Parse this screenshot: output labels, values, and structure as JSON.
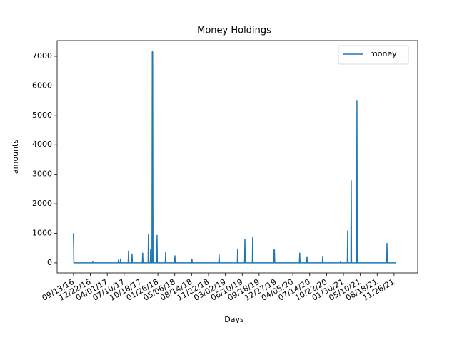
{
  "chart_data": {
    "type": "line",
    "title": "Money Holdings",
    "xlabel": "Days",
    "ylabel": "amounts",
    "x": [
      "2016-09-12",
      "2016-09-14",
      "2016-09-15",
      "2017-01-03",
      "2017-01-05",
      "2017-01-07",
      "2017-06-05",
      "2017-06-07",
      "2017-06-09",
      "2017-06-17",
      "2017-06-19",
      "2017-06-21",
      "2017-08-03",
      "2017-08-05",
      "2017-08-07",
      "2017-08-24",
      "2017-08-26",
      "2017-08-28",
      "2017-10-26",
      "2017-10-28",
      "2017-10-30",
      "2017-11-29",
      "2017-12-01",
      "2017-12-03",
      "2017-12-12",
      "2017-12-14",
      "2017-12-16",
      "2017-12-22",
      "2017-12-24",
      "2017-12-26",
      "2017-12-28",
      "2018-01-19",
      "2018-01-21",
      "2018-01-23",
      "2018-03-11",
      "2018-03-13",
      "2018-03-15",
      "2018-05-05",
      "2018-05-07",
      "2018-05-09",
      "2018-08-14",
      "2018-08-16",
      "2018-08-18",
      "2019-01-22",
      "2019-01-24",
      "2019-01-26",
      "2019-05-12",
      "2019-05-14",
      "2019-05-16",
      "2019-06-24",
      "2019-06-26",
      "2019-06-28",
      "2019-08-09",
      "2019-08-11",
      "2019-08-13",
      "2019-12-14",
      "2019-12-16",
      "2019-12-18",
      "2019-12-20",
      "2020-05-14",
      "2020-05-16",
      "2020-05-18",
      "2020-06-26",
      "2020-06-28",
      "2020-06-30",
      "2020-09-27",
      "2020-09-29",
      "2020-10-01",
      "2021-01-11",
      "2021-01-13",
      "2021-01-15",
      "2021-02-22",
      "2021-02-24",
      "2021-02-26",
      "2021-03-15",
      "2021-03-17",
      "2021-03-19",
      "2021-04-18",
      "2021-04-20",
      "2021-04-22",
      "2021-10-13",
      "2021-10-15",
      "2021-10-17",
      "2021-12-05"
    ],
    "series": [
      {
        "name": "money",
        "color": "#1f77b4",
        "values": [
          1000,
          550,
          0,
          0,
          30,
          0,
          0,
          100,
          0,
          0,
          130,
          0,
          0,
          400,
          0,
          0,
          300,
          0,
          0,
          330,
          0,
          0,
          970,
          0,
          0,
          450,
          0,
          0,
          7150,
          7150,
          0,
          0,
          930,
          0,
          0,
          350,
          0,
          0,
          240,
          0,
          0,
          130,
          0,
          0,
          270,
          0,
          0,
          470,
          0,
          0,
          800,
          0,
          0,
          870,
          0,
          0,
          450,
          420,
          0,
          0,
          330,
          0,
          0,
          210,
          0,
          0,
          220,
          0,
          0,
          30,
          0,
          0,
          1080,
          0,
          0,
          2780,
          0,
          0,
          5480,
          0,
          0,
          660,
          0,
          0
        ]
      }
    ],
    "xlim": [
      "2016-06-08",
      "2022-04-15"
    ],
    "xticks": [
      {
        "value": "2016-09-13",
        "label": "09/13/16"
      },
      {
        "value": "2016-12-22",
        "label": "12/22/16"
      },
      {
        "value": "2017-04-01",
        "label": "04/01/17"
      },
      {
        "value": "2017-07-10",
        "label": "07/10/17"
      },
      {
        "value": "2017-10-18",
        "label": "10/18/17"
      },
      {
        "value": "2018-01-26",
        "label": "01/26/18"
      },
      {
        "value": "2018-05-06",
        "label": "05/06/18"
      },
      {
        "value": "2018-08-14",
        "label": "08/14/18"
      },
      {
        "value": "2018-11-22",
        "label": "11/22/18"
      },
      {
        "value": "2019-03-02",
        "label": "03/02/19"
      },
      {
        "value": "2019-06-10",
        "label": "06/10/19"
      },
      {
        "value": "2019-09-18",
        "label": "09/18/19"
      },
      {
        "value": "2019-12-27",
        "label": "12/27/19"
      },
      {
        "value": "2020-04-05",
        "label": "04/05/20"
      },
      {
        "value": "2020-07-14",
        "label": "07/14/20"
      },
      {
        "value": "2020-10-22",
        "label": "10/22/20"
      },
      {
        "value": "2021-01-30",
        "label": "01/30/21"
      },
      {
        "value": "2021-05-10",
        "label": "05/10/21"
      },
      {
        "value": "2021-08-18",
        "label": "08/18/21"
      },
      {
        "value": "2021-11-26",
        "label": "11/26/21"
      }
    ],
    "ylim": [
      -340,
      7530
    ],
    "yticks": [
      0,
      1000,
      2000,
      3000,
      4000,
      5000,
      6000,
      7000
    ],
    "grid": false,
    "legend": "upper right"
  }
}
